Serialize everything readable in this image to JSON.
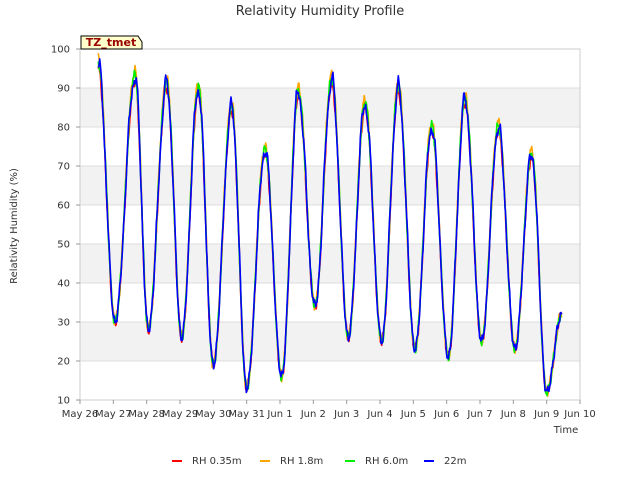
{
  "chart_data": {
    "type": "line",
    "title": "Relativity Humidity Profile",
    "xlabel": "Time",
    "ylabel": "Relativity Humidity (%)",
    "ylim": [
      10,
      100
    ],
    "yticks": [
      10,
      20,
      30,
      40,
      50,
      60,
      70,
      80,
      90,
      100
    ],
    "xlim": [
      0,
      15
    ],
    "x_units": "days since May 26",
    "xtick_labels": [
      "May 26",
      "May 27",
      "May 28",
      "May 29",
      "May 30",
      "May 31",
      "Jun 1",
      "Jun 2",
      "Jun 3",
      "Jun 4",
      "Jun 5",
      "Jun 6",
      "Jun 7",
      "Jun 8",
      "Jun 9",
      "Jun 10"
    ],
    "grid": true,
    "band_shading": true,
    "annotation": "TZ_tmet",
    "legend_position": "bottom",
    "daily_extrema": [
      {
        "x": 0.55,
        "y": 96
      },
      {
        "x": 1.05,
        "y": 30
      },
      {
        "x": 1.65,
        "y": 93
      },
      {
        "x": 2.05,
        "y": 28
      },
      {
        "x": 2.6,
        "y": 91
      },
      {
        "x": 3.05,
        "y": 26
      },
      {
        "x": 3.55,
        "y": 90
      },
      {
        "x": 4.0,
        "y": 19
      },
      {
        "x": 4.55,
        "y": 85
      },
      {
        "x": 5.0,
        "y": 13
      },
      {
        "x": 5.55,
        "y": 74
      },
      {
        "x": 6.05,
        "y": 16
      },
      {
        "x": 6.55,
        "y": 89
      },
      {
        "x": 7.05,
        "y": 34
      },
      {
        "x": 7.55,
        "y": 92
      },
      {
        "x": 8.05,
        "y": 26
      },
      {
        "x": 8.55,
        "y": 86
      },
      {
        "x": 9.05,
        "y": 25
      },
      {
        "x": 9.55,
        "y": 90
      },
      {
        "x": 10.05,
        "y": 23
      },
      {
        "x": 10.55,
        "y": 80
      },
      {
        "x": 11.05,
        "y": 21
      },
      {
        "x": 11.55,
        "y": 87
      },
      {
        "x": 12.05,
        "y": 25
      },
      {
        "x": 12.55,
        "y": 80
      },
      {
        "x": 13.05,
        "y": 23
      },
      {
        "x": 13.55,
        "y": 73
      },
      {
        "x": 14.0,
        "y": 12
      },
      {
        "x": 14.45,
        "y": 32
      }
    ],
    "series": [
      {
        "name": "RH 0.35m",
        "color": "#ff0000",
        "offset": -1.0
      },
      {
        "name": "RH 1.8m",
        "color": "#ffa500",
        "offset": 1.5
      },
      {
        "name": "RH 6.0m",
        "color": "#00ee00",
        "offset": 0.5
      },
      {
        "name": "22m",
        "color": "#0000ff",
        "offset": 0.0
      }
    ]
  }
}
